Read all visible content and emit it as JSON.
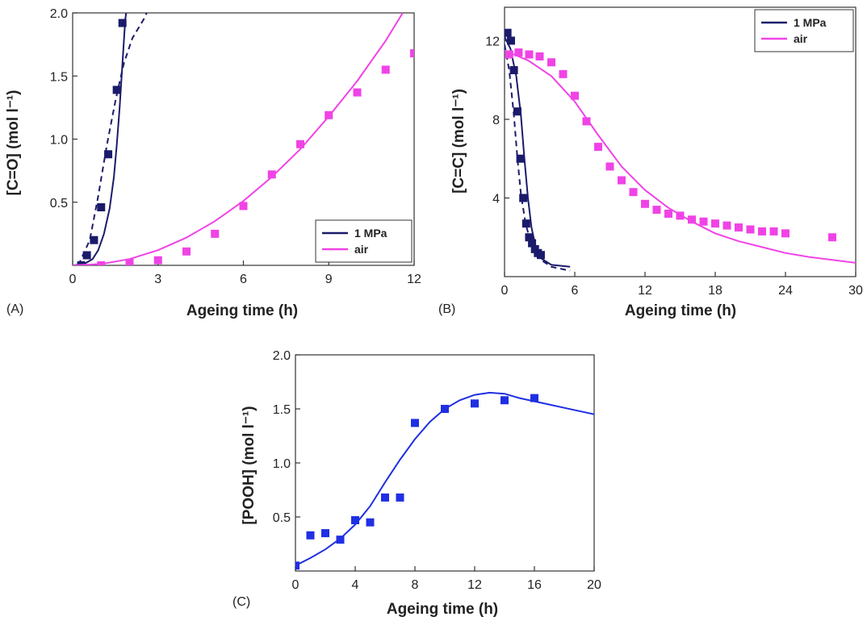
{
  "colors": {
    "navy": "#1b1b6b",
    "magenta": "#f043e6",
    "blue": "#1f2fe3",
    "axis": "#333333"
  },
  "chart_data": [
    {
      "panel": "(A)",
      "type": "scatter",
      "xlabel": "Ageing time (h)",
      "ylabel": "[C=O] (mol l⁻¹)",
      "xlim": [
        0,
        12
      ],
      "ylim": [
        0,
        2.0
      ],
      "xticks": [
        "0",
        "3",
        "6",
        "9",
        "12"
      ],
      "yticks": [
        "0.5",
        "1.0",
        "1.5",
        "2.0"
      ],
      "legend_position": "bottom-right",
      "series": [
        {
          "name": "1 MPa",
          "color": "navy",
          "legend": true,
          "points": [
            [
              0.3,
              0.0
            ],
            [
              0.5,
              0.08
            ],
            [
              0.75,
              0.2
            ],
            [
              1.0,
              0.46
            ],
            [
              1.25,
              0.88
            ],
            [
              1.55,
              1.39
            ],
            [
              1.75,
              1.92
            ]
          ],
          "line": [
            [
              0,
              0.0
            ],
            [
              0.4,
              0.01
            ],
            [
              0.7,
              0.05
            ],
            [
              0.9,
              0.12
            ],
            [
              1.1,
              0.25
            ],
            [
              1.3,
              0.45
            ],
            [
              1.45,
              0.7
            ],
            [
              1.55,
              0.95
            ],
            [
              1.65,
              1.25
            ],
            [
              1.75,
              1.6
            ],
            [
              1.85,
              1.95
            ],
            [
              1.88,
              2.0
            ]
          ],
          "line_dash": [
            [
              0.2,
              0.0
            ],
            [
              0.6,
              0.2
            ],
            [
              0.9,
              0.55
            ],
            [
              1.2,
              0.95
            ],
            [
              1.5,
              1.3
            ],
            [
              1.8,
              1.6
            ],
            [
              2.1,
              1.8
            ],
            [
              2.5,
              1.95
            ],
            [
              2.6,
              2.0
            ]
          ]
        },
        {
          "name": "air",
          "color": "magenta",
          "legend": true,
          "points": [
            [
              1.0,
              0.0
            ],
            [
              2.0,
              0.02
            ],
            [
              3.0,
              0.04
            ],
            [
              4.0,
              0.11
            ],
            [
              5.0,
              0.25
            ],
            [
              6.0,
              0.47
            ],
            [
              7.0,
              0.72
            ],
            [
              8.0,
              0.96
            ],
            [
              9.0,
              1.19
            ],
            [
              10.0,
              1.37
            ],
            [
              11.0,
              1.55
            ],
            [
              12.0,
              1.68
            ]
          ],
          "line": [
            [
              0,
              0.0
            ],
            [
              1,
              0.01
            ],
            [
              2,
              0.05
            ],
            [
              3,
              0.12
            ],
            [
              4,
              0.22
            ],
            [
              5,
              0.35
            ],
            [
              6,
              0.51
            ],
            [
              7,
              0.7
            ],
            [
              8,
              0.92
            ],
            [
              9,
              1.18
            ],
            [
              10,
              1.46
            ],
            [
              11,
              1.78
            ],
            [
              11.6,
              2.0
            ]
          ]
        }
      ]
    },
    {
      "panel": "(B)",
      "type": "scatter",
      "xlabel": "Ageing time (h)",
      "ylabel": "[C=C] (mol l⁻¹)",
      "xlim": [
        0,
        30
      ],
      "ylim": [
        0,
        13.7
      ],
      "xticks": [
        "0",
        "6",
        "12",
        "18",
        "24",
        "30"
      ],
      "yticks": [
        "4",
        "8",
        "12"
      ],
      "legend_position": "top-right",
      "series": [
        {
          "name": "1 MPa",
          "color": "navy",
          "legend": true,
          "points": [
            [
              0.25,
              12.4
            ],
            [
              0.55,
              12.0
            ],
            [
              0.8,
              10.5
            ],
            [
              1.1,
              8.4
            ],
            [
              1.35,
              6.0
            ],
            [
              1.6,
              4.0
            ],
            [
              1.85,
              2.7
            ],
            [
              2.1,
              2.0
            ],
            [
              2.35,
              1.7
            ],
            [
              2.6,
              1.4
            ],
            [
              2.85,
              1.2
            ],
            [
              3.1,
              1.1
            ]
          ],
          "line": [
            [
              0,
              12.2
            ],
            [
              0.5,
              11.6
            ],
            [
              1.0,
              10.2
            ],
            [
              1.4,
              8.2
            ],
            [
              1.7,
              6.0
            ],
            [
              2.0,
              4.0
            ],
            [
              2.3,
              2.5
            ],
            [
              2.7,
              1.4
            ],
            [
              3.2,
              0.9
            ],
            [
              4.0,
              0.6
            ],
            [
              5.6,
              0.5
            ]
          ],
          "line_dash": [
            [
              0,
              11.8
            ],
            [
              0.4,
              10.5
            ],
            [
              0.8,
              8.2
            ],
            [
              1.1,
              6.0
            ],
            [
              1.4,
              4.2
            ],
            [
              1.8,
              2.7
            ],
            [
              2.3,
              1.6
            ],
            [
              3.0,
              0.9
            ],
            [
              4.0,
              0.5
            ],
            [
              5.6,
              0.3
            ]
          ]
        },
        {
          "name": "air",
          "color": "magenta",
          "legend": true,
          "points": [
            [
              0.4,
              11.3
            ],
            [
              1.2,
              11.4
            ],
            [
              2.1,
              11.3
            ],
            [
              3.0,
              11.2
            ],
            [
              4.0,
              10.9
            ],
            [
              5.0,
              10.3
            ],
            [
              6.0,
              9.2
            ],
            [
              7.0,
              7.9
            ],
            [
              8.0,
              6.6
            ],
            [
              9.0,
              5.6
            ],
            [
              10.0,
              4.9
            ],
            [
              11.0,
              4.3
            ],
            [
              12.0,
              3.7
            ],
            [
              13.0,
              3.4
            ],
            [
              14.0,
              3.2
            ],
            [
              15.0,
              3.1
            ],
            [
              16.0,
              2.9
            ],
            [
              17.0,
              2.8
            ],
            [
              18.0,
              2.7
            ],
            [
              19.0,
              2.6
            ],
            [
              20.0,
              2.5
            ],
            [
              21.0,
              2.4
            ],
            [
              22.0,
              2.3
            ],
            [
              23.0,
              2.3
            ],
            [
              24.0,
              2.2
            ],
            [
              28.0,
              2.0
            ]
          ],
          "line": [
            [
              0,
              11.5
            ],
            [
              2,
              11.0
            ],
            [
              4,
              10.2
            ],
            [
              6,
              8.9
            ],
            [
              8,
              7.2
            ],
            [
              10,
              5.6
            ],
            [
              12,
              4.4
            ],
            [
              14,
              3.5
            ],
            [
              16,
              2.8
            ],
            [
              18,
              2.2
            ],
            [
              20,
              1.8
            ],
            [
              22,
              1.5
            ],
            [
              24,
              1.2
            ],
            [
              26,
              1.0
            ],
            [
              28,
              0.85
            ],
            [
              30,
              0.7
            ]
          ]
        }
      ]
    },
    {
      "panel": "(C)",
      "type": "scatter",
      "xlabel": "Ageing time (h)",
      "ylabel": "[POOH] (mol l⁻¹)",
      "xlim": [
        0,
        20
      ],
      "ylim": [
        0,
        2.0
      ],
      "xticks": [
        "0",
        "4",
        "8",
        "12",
        "16",
        "20"
      ],
      "yticks": [
        "0.5",
        "1.0",
        "1.5",
        "2.0"
      ],
      "legend_position": "none",
      "series": [
        {
          "name": "",
          "color": "blue",
          "legend": false,
          "points": [
            [
              0,
              0.05
            ],
            [
              1,
              0.33
            ],
            [
              2,
              0.35
            ],
            [
              3,
              0.29
            ],
            [
              4,
              0.47
            ],
            [
              5,
              0.45
            ],
            [
              6,
              0.68
            ],
            [
              7,
              0.68
            ],
            [
              8,
              1.37
            ],
            [
              10,
              1.5
            ],
            [
              12,
              1.55
            ],
            [
              14,
              1.58
            ],
            [
              16,
              1.6
            ]
          ],
          "line": [
            [
              0,
              0.05
            ],
            [
              1,
              0.12
            ],
            [
              2,
              0.2
            ],
            [
              3,
              0.3
            ],
            [
              4,
              0.43
            ],
            [
              5,
              0.6
            ],
            [
              6,
              0.82
            ],
            [
              7,
              1.03
            ],
            [
              8,
              1.22
            ],
            [
              9,
              1.38
            ],
            [
              10,
              1.5
            ],
            [
              11,
              1.58
            ],
            [
              12,
              1.63
            ],
            [
              13,
              1.65
            ],
            [
              14,
              1.64
            ],
            [
              15,
              1.6
            ],
            [
              16,
              1.57
            ],
            [
              17,
              1.54
            ],
            [
              18,
              1.51
            ],
            [
              19,
              1.48
            ],
            [
              20,
              1.45
            ]
          ]
        }
      ]
    }
  ]
}
